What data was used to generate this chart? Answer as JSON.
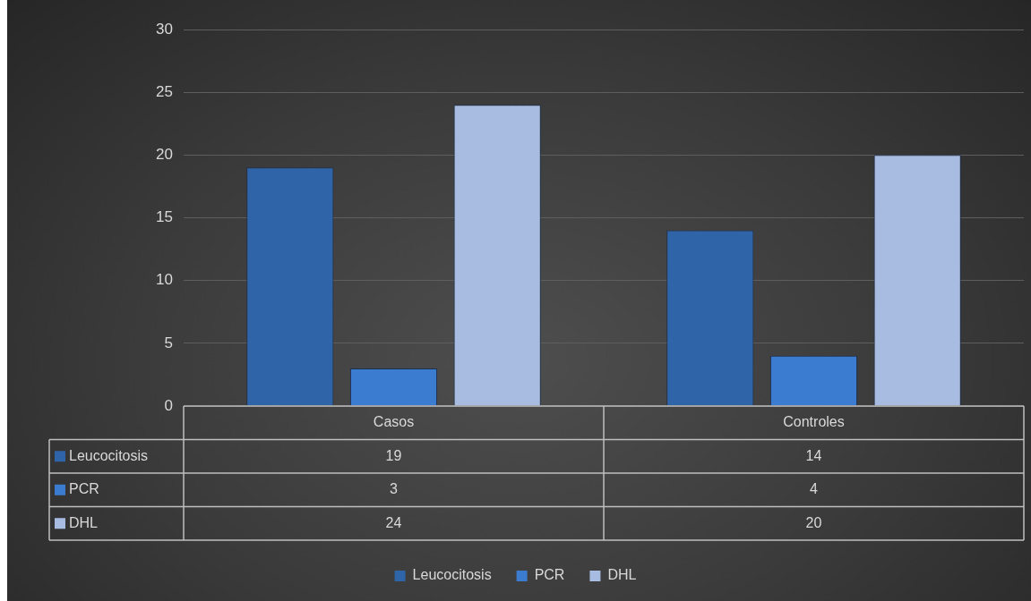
{
  "chart_data": {
    "type": "bar",
    "categories": [
      "Casos",
      "Controles"
    ],
    "series": [
      {
        "name": "Leucocitosis",
        "color": "#2f64a8",
        "values": [
          19,
          14
        ]
      },
      {
        "name": "PCR",
        "color": "#3b7cd0",
        "values": [
          3,
          4
        ]
      },
      {
        "name": "DHL",
        "color": "#a8bce2",
        "values": [
          24,
          20
        ]
      }
    ],
    "ylim": [
      0,
      30
    ],
    "yticks": [
      0,
      5,
      10,
      15,
      20,
      25,
      30
    ],
    "grid": "y",
    "legend": "bottom",
    "data_labels": true
  }
}
